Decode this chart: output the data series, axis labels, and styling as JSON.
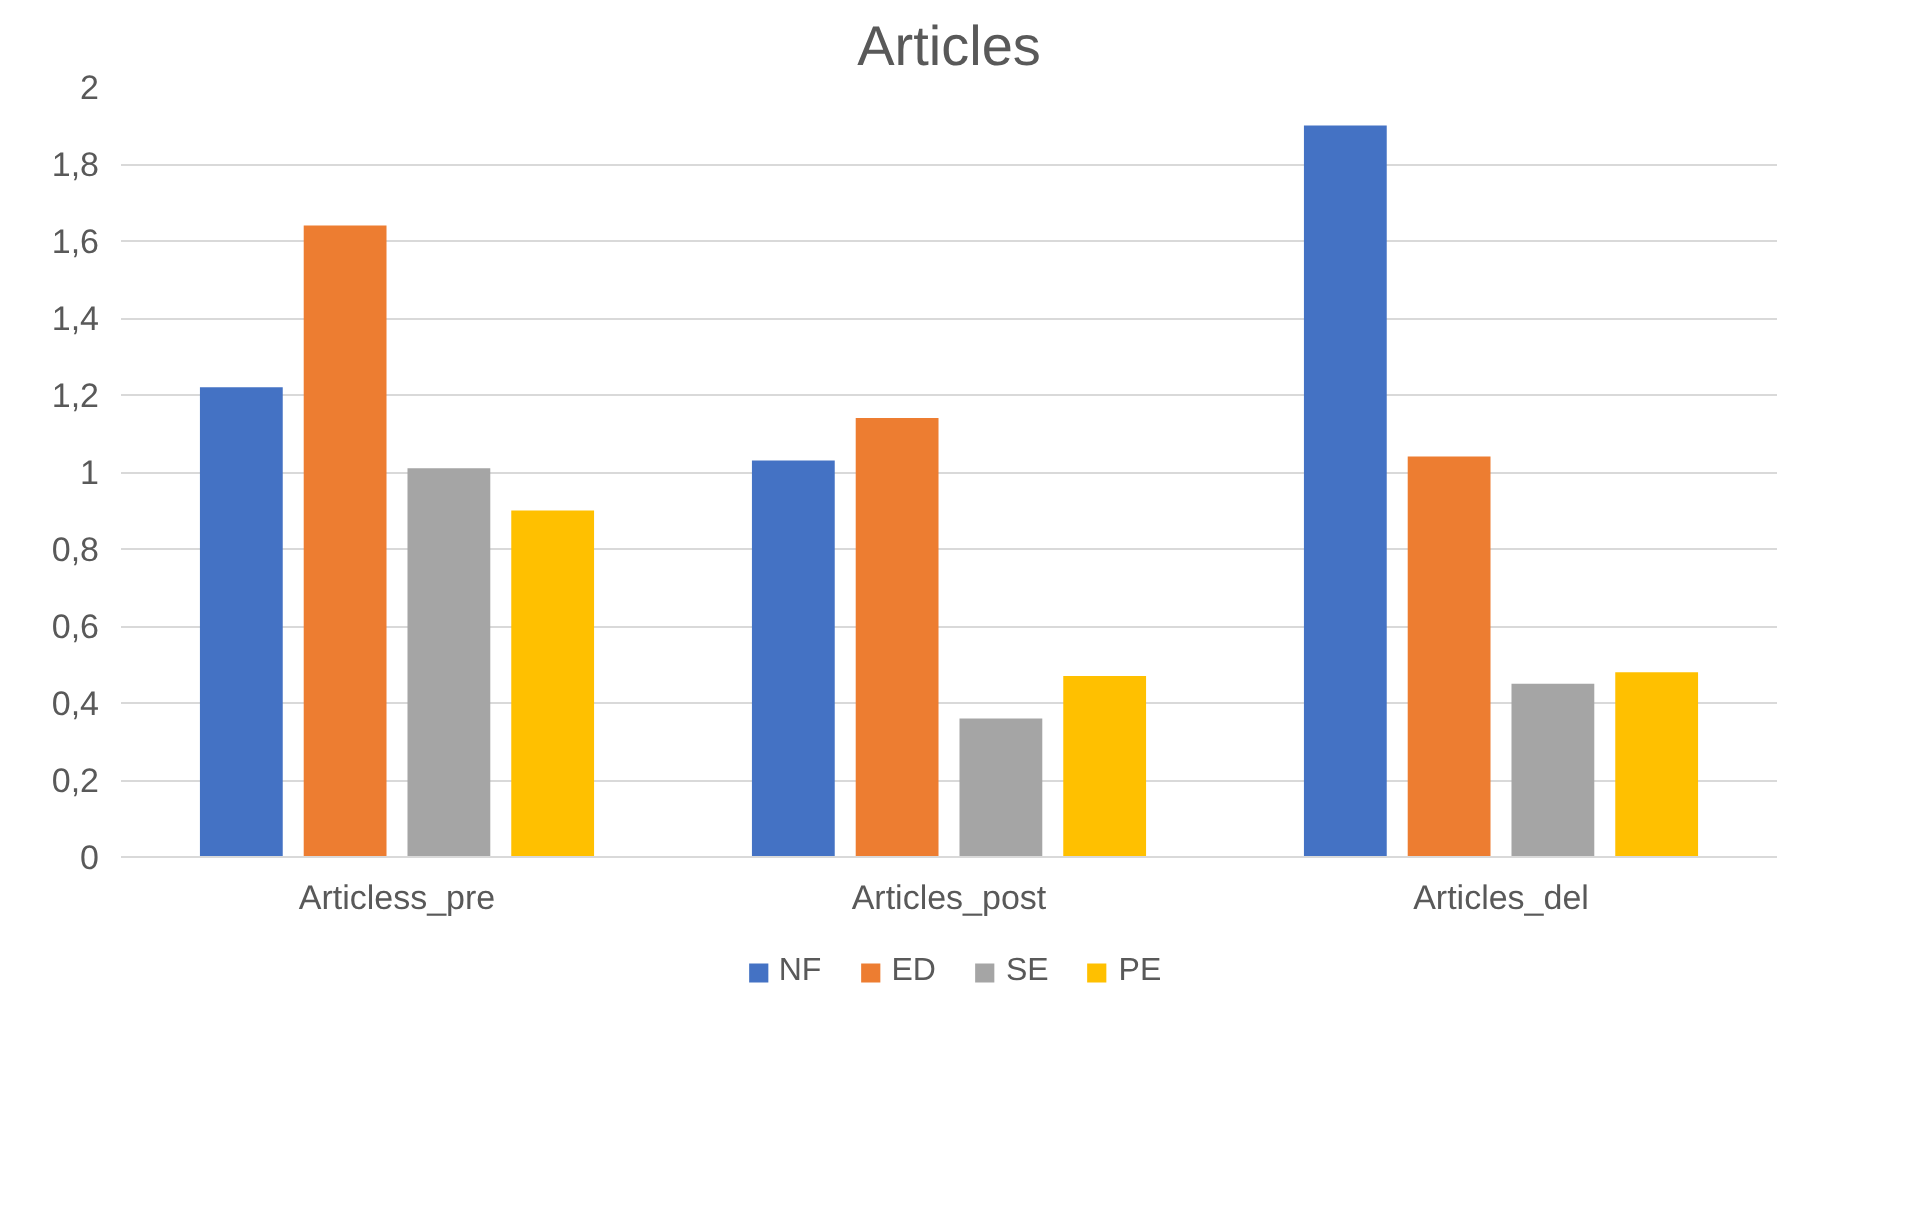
{
  "chart_data": {
    "type": "bar",
    "title": "Articles",
    "categories": [
      "Articless_pre",
      "Articles_post",
      "Articles_del"
    ],
    "series": [
      {
        "name": "NF",
        "color": "#4472c4",
        "values": [
          1.22,
          1.03,
          1.9
        ]
      },
      {
        "name": "ED",
        "color": "#ed7d31",
        "values": [
          1.64,
          1.14,
          1.04
        ]
      },
      {
        "name": "SE",
        "color": "#a5a5a5",
        "values": [
          1.01,
          0.36,
          0.45
        ]
      },
      {
        "name": "PE",
        "color": "#ffc000",
        "values": [
          0.9,
          0.47,
          0.48
        ]
      }
    ],
    "ylim": [
      0,
      2
    ],
    "yticks": [
      0,
      {
        "value": 0.2,
        "label": "0,2"
      },
      {
        "value": 0.4,
        "label": "0,4"
      },
      {
        "value": 0.6,
        "label": "0,6"
      },
      {
        "value": 0.8,
        "label": "0,8"
      },
      1,
      {
        "value": 1.2,
        "label": "1,2"
      },
      {
        "value": 1.4,
        "label": "1,4"
      },
      {
        "value": 1.6,
        "label": "1,6"
      },
      {
        "value": 1.8,
        "label": "1,8"
      },
      2
    ],
    "grid": "y",
    "legend": "bottom"
  }
}
